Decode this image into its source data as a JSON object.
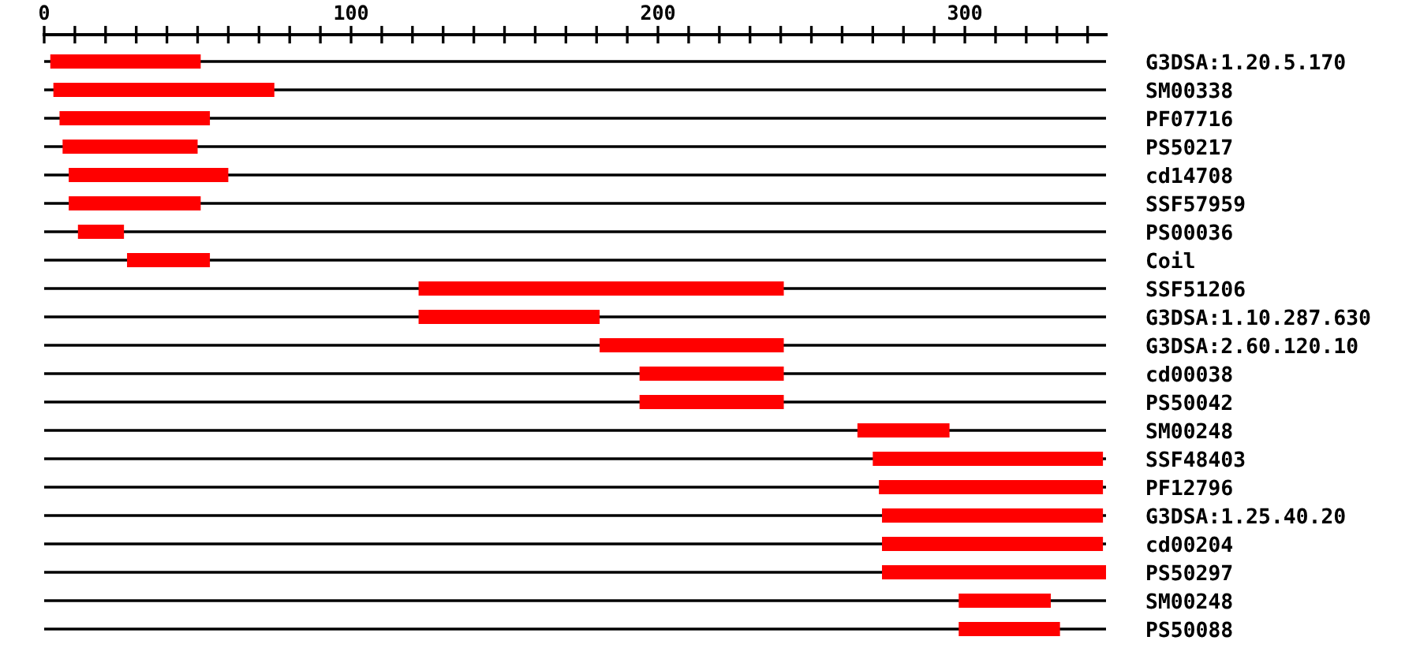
{
  "chart_data": {
    "type": "bar",
    "orientation": "horizontal",
    "color": "#ff0000",
    "grid": "y",
    "categories": [
      "G3DSA:1.20.5.170",
      "SM00338",
      "PF07716",
      "PS50217",
      "cd14708",
      "SSF57959",
      "PS00036",
      "Coil",
      "SSF51206",
      "G3DSA:1.10.287.630",
      "G3DSA:2.60.120.10",
      "cd00038",
      "PS50042",
      "SM00248",
      "SSF48403",
      "PF12796",
      "G3DSA:1.25.40.20",
      "cd00204",
      "PS50297",
      "SM00248",
      "PS50088"
    ],
    "base": [
      2,
      3,
      5,
      6,
      8,
      8,
      11,
      27,
      122,
      122,
      181,
      194,
      194,
      265,
      270,
      272,
      273,
      273,
      273,
      298,
      298
    ],
    "values": [
      49,
      72,
      49,
      44,
      52,
      43,
      15,
      27,
      119,
      59,
      60,
      47,
      47,
      30,
      75,
      73,
      72,
      72,
      73,
      30,
      33
    ],
    "xlim": [
      0,
      346
    ],
    "xticks": [
      0,
      {
        "value": 10,
        "label": null
      },
      {
        "value": 20,
        "label": null
      },
      {
        "value": 30,
        "label": null
      },
      {
        "value": 40,
        "label": null
      },
      {
        "value": 50,
        "label": null
      },
      {
        "value": 60,
        "label": null
      },
      {
        "value": 70,
        "label": null
      },
      {
        "value": 80,
        "label": null
      },
      {
        "value": 90,
        "label": null
      },
      100,
      {
        "value": 110,
        "label": null
      },
      {
        "value": 120,
        "label": null
      },
      {
        "value": 130,
        "label": null
      },
      {
        "value": 140,
        "label": null
      },
      {
        "value": 150,
        "label": null
      },
      {
        "value": 160,
        "label": null
      },
      {
        "value": 170,
        "label": null
      },
      {
        "value": 180,
        "label": null
      },
      {
        "value": 190,
        "label": null
      },
      200,
      {
        "value": 210,
        "label": null
      },
      {
        "value": 220,
        "label": null
      },
      {
        "value": 230,
        "label": null
      },
      {
        "value": 240,
        "label": null
      },
      {
        "value": 250,
        "label": null
      },
      {
        "value": 260,
        "label": null
      },
      {
        "value": 270,
        "label": null
      },
      {
        "value": 280,
        "label": null
      },
      {
        "value": 290,
        "label": null
      },
      300,
      {
        "value": 310,
        "label": null
      },
      {
        "value": 320,
        "label": null
      },
      {
        "value": 330,
        "label": null
      },
      {
        "value": 340,
        "label": null
      }
    ]
  }
}
